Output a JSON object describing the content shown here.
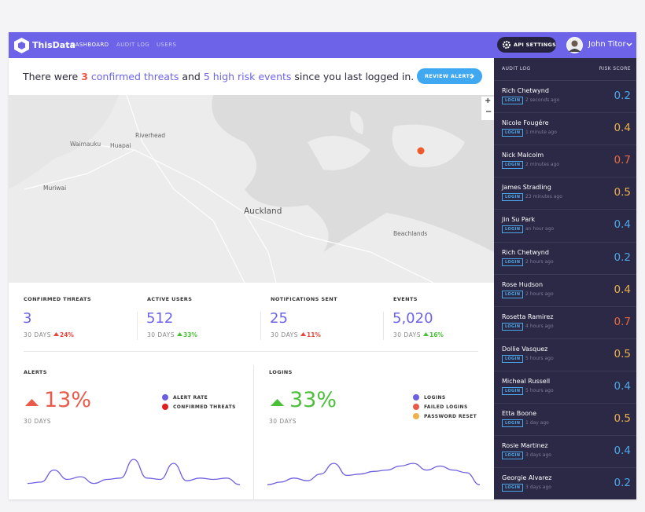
{
  "header": {
    "brand": "ThisData",
    "nav": [
      "DASHBOARD",
      "AUDIT LOG",
      "USERS"
    ],
    "api_button": "API SETTINGS",
    "user": "John Titor"
  },
  "banner": {
    "parts": [
      "There were ",
      "3",
      " confirmed threats",
      " and ",
      "5",
      " high risk events",
      " since you last logged in."
    ],
    "button": "REVIEW ALERTS"
  },
  "map": {
    "labels": [
      "Riverhead",
      "Waimauku",
      "Huapai",
      "Muriwai",
      "Auckland",
      "Beachlands"
    ],
    "zoom": [
      "+",
      "−"
    ]
  },
  "stats": [
    {
      "label": "CONFIRMED THREATS",
      "value": "3",
      "period": "30 DAYS",
      "change": "24%",
      "color": "#e8453c"
    },
    {
      "label": "ACTIVE USERS",
      "value": "512",
      "period": "30 DAYS",
      "change": "33%",
      "color": "#4cbf3a"
    },
    {
      "label": "NOTIFICATIONS SENT",
      "value": "25",
      "period": "30 DAYS",
      "change": "11%",
      "color": "#e8453c"
    },
    {
      "label": "EVENTS",
      "value": "5,020",
      "period": "30 DAYS",
      "change": "16%",
      "color": "#4cbf3a"
    }
  ],
  "alerts": {
    "title": "ALERTS",
    "value": "13%",
    "period": "30 DAYS",
    "color": "#ea5a4a",
    "legend": [
      {
        "name": "ALERT RATE",
        "color": "#6c5fe0"
      },
      {
        "name": "CONFIRMED THREATS",
        "color": "#e02020"
      }
    ],
    "sparkline": {
      "values": [
        1,
        1.5,
        6,
        2.5,
        3.5,
        1,
        2.5,
        3,
        10,
        3,
        2.5,
        8.5,
        2,
        3,
        2.5,
        3,
        0.5
      ],
      "ylim": [
        0,
        10
      ],
      "color": "#6c5fe0"
    }
  },
  "logins": {
    "title": "LOGINS",
    "value": "33%",
    "period": "30 DAYS",
    "color": "#4cbf3a",
    "legend": [
      {
        "name": "LOGINS",
        "color": "#6c5fe0"
      },
      {
        "name": "FAILED LOGINS",
        "color": "#ea5a4a"
      },
      {
        "name": "PASSWORD RESET",
        "color": "#f0b04a"
      }
    ],
    "sparkline": {
      "values": [
        0.5,
        1.5,
        3,
        2,
        4.5,
        8.5,
        4,
        4.5,
        5.5,
        6,
        7.5,
        8.5,
        6,
        7.5,
        6,
        5,
        0.5
      ],
      "ylim": [
        0,
        10
      ],
      "color": "#6c5fe0"
    }
  },
  "audit_log": {
    "title": "AUDIT LOG",
    "score_header": "RISK SCORE",
    "rows": [
      {
        "name": "Rich Chetwynd",
        "event": "LOGIN",
        "time": "2 seconds ago",
        "score": "0.2",
        "color": "#4aa8e8"
      },
      {
        "name": "Nicole Fougére",
        "event": "LOGIN",
        "time": "1 minute ago",
        "score": "0.4",
        "color": "#e8b04a"
      },
      {
        "name": "Nick Malcolm",
        "event": "LOGIN",
        "time": "2 minutes ago",
        "score": "0.7",
        "color": "#ec6a3c"
      },
      {
        "name": "James Stradling",
        "event": "LOGIN",
        "time": "23 minutes ago",
        "score": "0.5",
        "color": "#e8b04a"
      },
      {
        "name": "Jin Su Park",
        "event": "LOGIN",
        "time": "an hour ago",
        "score": "0.4",
        "color": "#4aa8e8"
      },
      {
        "name": "Rich Chetwynd",
        "event": "LOGIN",
        "time": "2 hours ago",
        "score": "0.2",
        "color": "#4aa8e8"
      },
      {
        "name": "Rose Hudson",
        "event": "LOGIN",
        "time": "2 hours ago",
        "score": "0.4",
        "color": "#e8b04a"
      },
      {
        "name": "Rosetta Ramirez",
        "event": "LOGIN",
        "time": "4 hours ago",
        "score": "0.7",
        "color": "#ec6a3c"
      },
      {
        "name": "Dollie Vasquez",
        "event": "LOGIN",
        "time": "5 hours ago",
        "score": "0.5",
        "color": "#e8b04a"
      },
      {
        "name": "Micheal Russell",
        "event": "LOGIN",
        "time": "5 hours ago",
        "score": "0.4",
        "color": "#4aa8e8"
      },
      {
        "name": "Etta Boone",
        "event": "LOGIN",
        "time": "1 day ago",
        "score": "0.5",
        "color": "#e8b04a"
      },
      {
        "name": "Rosie Martinez",
        "event": "LOGIN",
        "time": "3 days ago",
        "score": "0.4",
        "color": "#4aa8e8"
      },
      {
        "name": "Georgie Alvarez",
        "event": "LOGIN",
        "time": "3 days ago",
        "score": "0.2",
        "color": "#4aa8e8"
      }
    ]
  }
}
